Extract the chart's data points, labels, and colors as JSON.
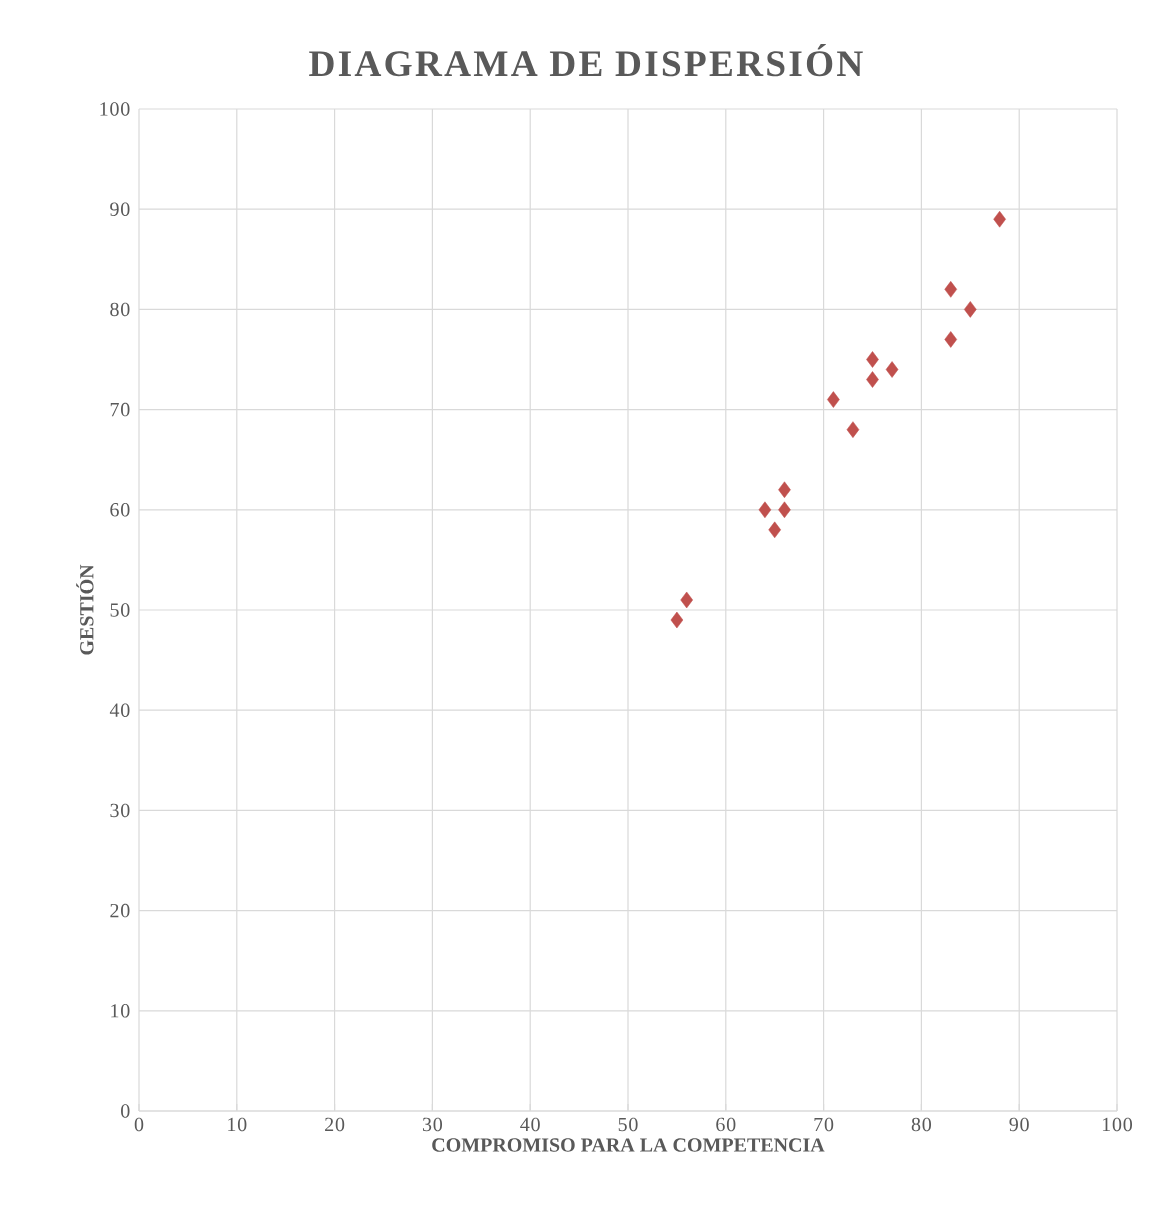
{
  "chart_data": {
    "type": "scatter",
    "title": "DIAGRAMA DE DISPERSIÓN",
    "xlabel": "COMPROMISO PARA LA COMPETENCIA",
    "ylabel": "GESTIÓN",
    "x": [
      55,
      56,
      64,
      65,
      66,
      66,
      71,
      73,
      75,
      75,
      77,
      83,
      83,
      85,
      88
    ],
    "values": [
      49,
      51,
      60,
      58,
      62,
      60,
      71,
      68,
      75,
      73,
      74,
      82,
      77,
      80,
      89
    ],
    "color": "#c0504d",
    "marker": "diamond",
    "grid": true,
    "xlim": [
      0,
      100
    ],
    "ylim": [
      0,
      100
    ],
    "xticks": [
      0,
      10,
      20,
      30,
      40,
      50,
      60,
      70,
      80,
      90,
      100
    ],
    "yticks": [
      0,
      10,
      20,
      30,
      40,
      50,
      60,
      70,
      80,
      90,
      100
    ]
  }
}
